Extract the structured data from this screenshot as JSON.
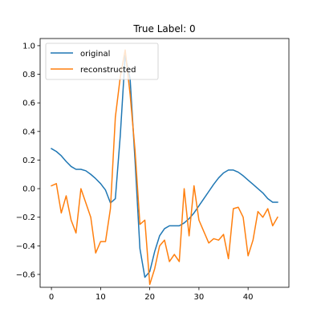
{
  "chart_data": {
    "type": "line",
    "title": "True Label: 0",
    "xlabel": "",
    "ylabel": "",
    "xlim": [
      -2.3,
      48.3
    ],
    "ylim": [
      -0.69,
      1.05
    ],
    "xticks": [
      0,
      10,
      20,
      30,
      40
    ],
    "yticks": [
      -0.6,
      -0.4,
      -0.2,
      0.0,
      0.2,
      0.4,
      0.6,
      0.8,
      1.0
    ],
    "ytick_labels": [
      "−0.6",
      "−0.4",
      "−0.2",
      "0.0",
      "0.2",
      "0.4",
      "0.6",
      "0.8",
      "1.0"
    ],
    "grid": false,
    "legend_position": "upper-left",
    "x": [
      0,
      1,
      2,
      3,
      4,
      5,
      6,
      7,
      8,
      9,
      10,
      11,
      12,
      13,
      14,
      15,
      16,
      17,
      18,
      19,
      20,
      21,
      22,
      23,
      24,
      25,
      26,
      27,
      28,
      29,
      30,
      31,
      32,
      33,
      34,
      35,
      36,
      37,
      38,
      39,
      40,
      41,
      42,
      43,
      44,
      45,
      46
    ],
    "series": [
      {
        "name": "original",
        "color": "#1f77b4",
        "values": [
          0.28,
          0.26,
          0.23,
          0.19,
          0.155,
          0.135,
          0.135,
          0.125,
          0.1,
          0.07,
          0.035,
          -0.01,
          -0.1,
          -0.07,
          0.37,
          0.93,
          0.77,
          0.2,
          -0.42,
          -0.62,
          -0.58,
          -0.44,
          -0.33,
          -0.28,
          -0.26,
          -0.26,
          -0.26,
          -0.24,
          -0.21,
          -0.17,
          -0.12,
          -0.07,
          -0.02,
          0.03,
          0.075,
          0.11,
          0.13,
          0.13,
          0.115,
          0.09,
          0.06,
          0.03,
          0.0,
          -0.03,
          -0.07,
          -0.095,
          -0.095
        ]
      },
      {
        "name": "reconstructed",
        "color": "#ff7f0e",
        "values": [
          0.02,
          0.035,
          -0.17,
          -0.05,
          -0.22,
          -0.31,
          0.0,
          -0.1,
          -0.2,
          -0.45,
          -0.37,
          -0.37,
          -0.14,
          0.5,
          0.78,
          0.97,
          0.66,
          0.27,
          -0.25,
          -0.22,
          -0.67,
          -0.56,
          -0.4,
          -0.36,
          -0.51,
          -0.46,
          -0.51,
          0.0,
          -0.33,
          0.02,
          -0.22,
          -0.3,
          -0.38,
          -0.35,
          -0.36,
          -0.32,
          -0.49,
          -0.14,
          -0.13,
          -0.2,
          -0.47,
          -0.36,
          -0.16,
          -0.2,
          -0.14,
          -0.26,
          -0.2
        ]
      }
    ]
  }
}
